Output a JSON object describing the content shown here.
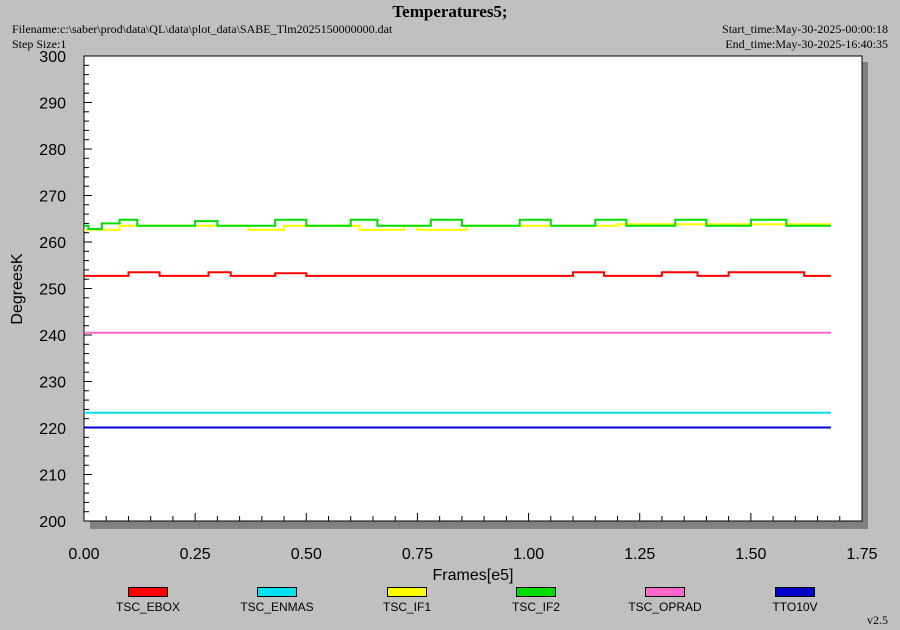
{
  "header": {
    "title": "Temperatures5;",
    "filename": "Filename:c:\\saber\\prod\\data\\QL\\data\\plot_data\\SABE_Tlm2025150000000.dat",
    "step_size": "Step Size:1",
    "start_time": "Start_time:May-30-2025-00:00:18",
    "end_time": "End_time:May-30-2025-16:40:35"
  },
  "version": "v2.5",
  "chart_data": {
    "type": "line",
    "title": "Temperatures5;",
    "xlabel": "Frames[e5]",
    "ylabel": "DegreesK",
    "xlim": [
      0,
      1.75
    ],
    "ylim": [
      200,
      300
    ],
    "x_ticks": [
      "0.00",
      "0.25",
      "0.50",
      "0.75",
      "1.00",
      "1.25",
      "1.50",
      "1.75"
    ],
    "y_ticks": [
      "200",
      "210",
      "220",
      "230",
      "240",
      "250",
      "260",
      "270",
      "280",
      "290",
      "300"
    ],
    "grid": false,
    "legend_position": "bottom",
    "series": [
      {
        "name": "TSC_EBOX",
        "color": "#ff0000",
        "x": [
          0.0,
          0.1,
          0.1,
          0.17,
          0.17,
          0.28,
          0.28,
          0.33,
          0.33,
          0.43,
          0.43,
          0.5,
          0.5,
          1.1,
          1.1,
          1.17,
          1.17,
          1.3,
          1.3,
          1.38,
          1.38,
          1.45,
          1.45,
          1.62,
          1.62,
          1.68
        ],
        "y": [
          252.7,
          252.7,
          253.5,
          253.5,
          252.7,
          252.7,
          253.5,
          253.5,
          252.7,
          252.7,
          253.3,
          253.3,
          252.7,
          252.7,
          253.5,
          253.5,
          252.7,
          252.7,
          253.5,
          253.5,
          252.7,
          252.7,
          253.5,
          253.5,
          252.7,
          252.7
        ]
      },
      {
        "name": "TSC_ENMAS",
        "color": "#00e0f0",
        "x": [
          0.0,
          1.68
        ],
        "y": [
          223.3,
          223.3
        ]
      },
      {
        "name": "TSC_IF1",
        "color": "#ffff00",
        "x": [
          0.0,
          0.08,
          0.08,
          0.37,
          0.37,
          0.45,
          0.45,
          0.62,
          0.62,
          0.72,
          0.72,
          0.75,
          0.75,
          0.86,
          0.86,
          1.2,
          1.2,
          1.68
        ],
        "y": [
          262.6,
          262.6,
          263.5,
          263.5,
          262.6,
          262.6,
          263.5,
          263.5,
          262.6,
          262.6,
          263.5,
          263.5,
          262.6,
          262.6,
          263.5,
          263.5,
          263.8,
          263.8
        ]
      },
      {
        "name": "TSC_IF2",
        "color": "#00dd00",
        "x": [
          0.0,
          0.01,
          0.01,
          0.04,
          0.04,
          0.08,
          0.08,
          0.12,
          0.12,
          0.25,
          0.25,
          0.3,
          0.3,
          0.43,
          0.43,
          0.5,
          0.5,
          0.6,
          0.6,
          0.66,
          0.66,
          0.78,
          0.78,
          0.85,
          0.85,
          0.98,
          0.98,
          1.05,
          1.05,
          1.15,
          1.15,
          1.22,
          1.22,
          1.33,
          1.33,
          1.4,
          1.4,
          1.5,
          1.5,
          1.58,
          1.58,
          1.68
        ],
        "y": [
          263.5,
          263.5,
          262.8,
          262.8,
          264.0,
          264.0,
          264.8,
          264.8,
          263.5,
          263.5,
          264.5,
          264.5,
          263.5,
          263.5,
          264.8,
          264.8,
          263.5,
          263.5,
          264.8,
          264.8,
          263.5,
          263.5,
          264.8,
          264.8,
          263.5,
          263.5,
          264.8,
          264.8,
          263.5,
          263.5,
          264.8,
          264.8,
          263.5,
          263.5,
          264.8,
          264.8,
          263.5,
          263.5,
          264.8,
          264.8,
          263.5,
          263.5
        ]
      },
      {
        "name": "TSC_OPRAD",
        "color": "#ff66cc",
        "x": [
          0.0,
          1.68
        ],
        "y": [
          240.5,
          240.5
        ]
      },
      {
        "name": "TTO10V",
        "color": "#0000cc",
        "x": [
          0.0,
          1.68
        ],
        "y": [
          220.1,
          220.1
        ]
      }
    ]
  }
}
